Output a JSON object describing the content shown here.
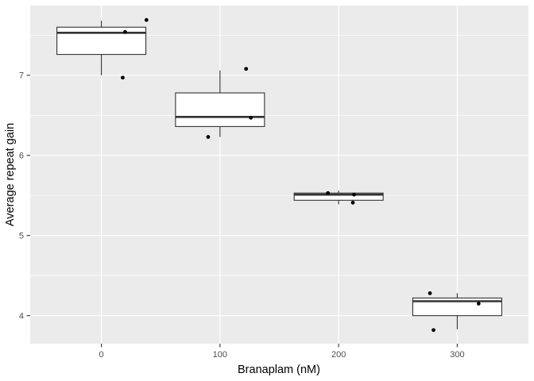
{
  "chart_data": {
    "type": "boxplot",
    "title": "",
    "xlabel": "Branaplam (nM)",
    "ylabel": "Average repeat gain",
    "categories": [
      "0",
      "100",
      "200",
      "300"
    ],
    "y_ticks": [
      4,
      5,
      6,
      7
    ],
    "y_minor_ticks": [
      4.5,
      5.5,
      6.5,
      7.5
    ],
    "ylim": [
      3.65,
      7.87
    ],
    "grid": "horizontal-major-and-minor, vertical-major-at-categories",
    "legend": "none",
    "theme": "ggplot2-grey",
    "boxes": [
      {
        "category": "0",
        "whisker_low": 7.0,
        "q1": 7.26,
        "median": 7.53,
        "q3": 7.6,
        "whisker_high": 7.68
      },
      {
        "category": "100",
        "whisker_low": 6.23,
        "q1": 6.36,
        "median": 6.48,
        "q3": 6.78,
        "whisker_high": 7.06
      },
      {
        "category": "200",
        "whisker_low": 5.39,
        "q1": 5.44,
        "median": 5.51,
        "q3": 5.53,
        "whisker_high": 5.56
      },
      {
        "category": "300",
        "whisker_low": 3.83,
        "q1": 4.0,
        "median": 4.18,
        "q3": 4.22,
        "whisker_high": 4.28
      }
    ],
    "points": [
      {
        "group": 0,
        "dx": 0.18,
        "y": 6.97
      },
      {
        "group": 0,
        "dx": 0.2,
        "y": 7.54
      },
      {
        "group": 0,
        "dx": 0.38,
        "y": 7.69
      },
      {
        "group": 1,
        "dx": -0.1,
        "y": 6.23
      },
      {
        "group": 1,
        "dx": 0.22,
        "y": 7.08
      },
      {
        "group": 1,
        "dx": 0.26,
        "y": 6.47
      },
      {
        "group": 2,
        "dx": -0.09,
        "y": 5.53
      },
      {
        "group": 2,
        "dx": 0.13,
        "y": 5.51
      },
      {
        "group": 2,
        "dx": 0.12,
        "y": 5.41
      },
      {
        "group": 3,
        "dx": -0.23,
        "y": 4.28
      },
      {
        "group": 3,
        "dx": 0.18,
        "y": 4.15
      },
      {
        "group": 3,
        "dx": -0.2,
        "y": 3.82
      }
    ],
    "colors": {
      "figure_background": "#FFFFFF",
      "panel_background": "#EBEBEB",
      "gridline": "#FFFFFF",
      "box_border": "#333333",
      "box_fill": "#FFFFFF",
      "point": "#000000",
      "tick_mark": "#333333",
      "tick_label": "#4D4D4D",
      "axis_title": "#000000"
    }
  }
}
